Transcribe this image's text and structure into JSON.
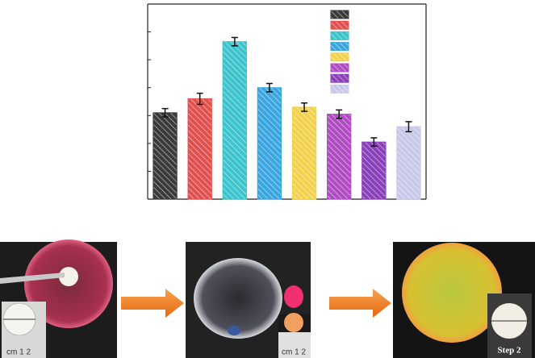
{
  "chart_data": {
    "type": "bar",
    "categories": [
      null,
      null,
      null,
      null,
      null,
      null,
      null,
      null
    ],
    "values": [
      3.1,
      3.6,
      5.65,
      4.0,
      3.3,
      3.05,
      2.05,
      2.6
    ],
    "errors": [
      0.15,
      0.2,
      0.15,
      0.15,
      0.15,
      0.15,
      0.15,
      0.18
    ],
    "colors": [
      "#3a3a3a",
      "#e0504e",
      "#3cc4cc",
      "#3aa6df",
      "#f2d24c",
      "#b04cc2",
      "#8a40b8",
      "#c9c8ea"
    ],
    "ylim": [
      0,
      7
    ],
    "yticks": [
      0,
      1,
      2,
      3,
      4,
      5,
      6,
      7
    ],
    "hatch": true
  },
  "panels": [
    {
      "label": "cm 1 2"
    },
    {
      "label": "cm 1 2"
    },
    {
      "label": "Step 2"
    }
  ]
}
